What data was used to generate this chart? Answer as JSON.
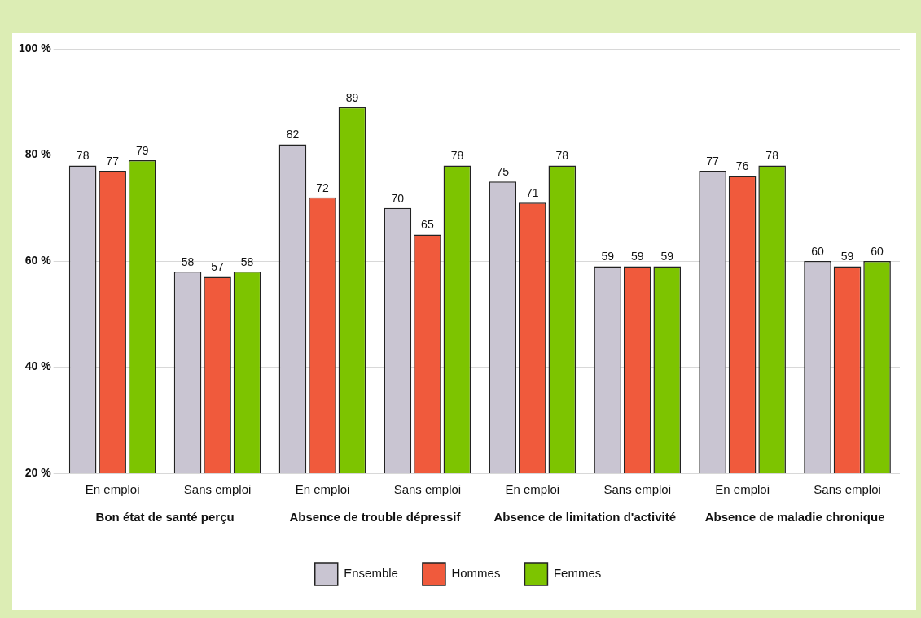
{
  "chart_data": {
    "type": "bar",
    "categories": [
      "En emploi",
      "Sans emploi",
      "En emploi",
      "Sans emploi",
      "En emploi",
      "Sans emploi",
      "En emploi",
      "Sans emploi"
    ],
    "series": [
      {
        "name": "Ensemble",
        "color": "#c9c5d2",
        "values": [
          78,
          58,
          82,
          70,
          75,
          59,
          77,
          60
        ]
      },
      {
        "name": "Hommes",
        "color": "#f05a3c",
        "values": [
          77,
          57,
          72,
          65,
          71,
          59,
          76,
          59
        ]
      },
      {
        "name": "Femmes",
        "color": "#7dc400",
        "values": [
          79,
          58,
          89,
          78,
          78,
          59,
          78,
          60
        ]
      }
    ],
    "ylim": [
      20,
      100
    ],
    "yticks": [
      {
        "value": 20,
        "label": "20 %"
      },
      {
        "value": 40,
        "label": "40 %"
      },
      {
        "value": 60,
        "label": "60 %"
      },
      {
        "value": 80,
        "label": "80 %"
      },
      {
        "value": 100,
        "label": "100 %"
      }
    ],
    "annotations": [
      "Bon état de santé perçu",
      "Absence de trouble dépressif",
      "Absence de limitation d'activité",
      "Absence de maladie chronique"
    ],
    "grid": "y",
    "legend": "bottom",
    "data_labels": true
  }
}
